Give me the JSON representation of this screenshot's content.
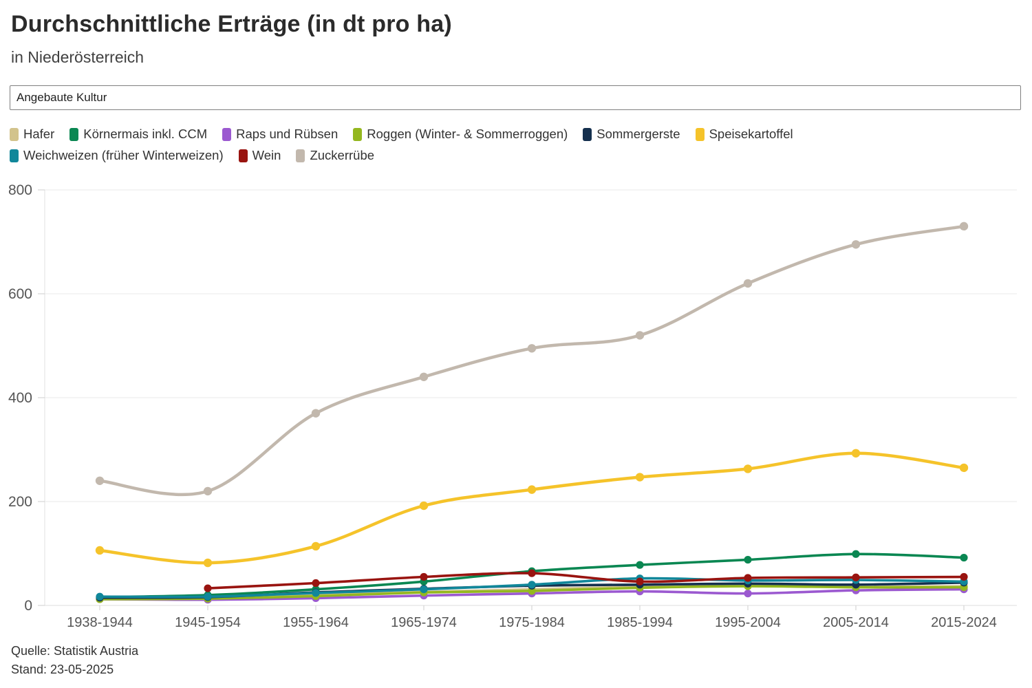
{
  "header": {
    "title": "Durchschnittliche Erträge (in dt pro ha)",
    "subtitle": "in Niederösterreich"
  },
  "filter": {
    "label": "Angebaute Kultur"
  },
  "chart_data": {
    "type": "line",
    "title": "Durchschnittliche Erträge (in dt pro ha)",
    "xlabel": "",
    "ylabel": "",
    "ylim": [
      0,
      800
    ],
    "yticks": [
      0,
      200,
      400,
      600,
      800
    ],
    "grid": true,
    "legend_position": "top",
    "categories": [
      "1938-1944",
      "1945-1954",
      "1955-1964",
      "1965-1974",
      "1975-1984",
      "1985-1994",
      "1995-2004",
      "2005-2014",
      "2015-2024"
    ],
    "series": [
      {
        "name": "Hafer",
        "color": "#d2c38c",
        "values": [
          13,
          14,
          20,
          26,
          31,
          36,
          38,
          36,
          37
        ]
      },
      {
        "name": "Körnermais inkl. CCM",
        "color": "#0a8752",
        "values": [
          16,
          20,
          31,
          46,
          66,
          78,
          88,
          99,
          92
        ]
      },
      {
        "name": "Raps und Rübsen",
        "color": "#9b59d0",
        "values": [
          12,
          11,
          14,
          19,
          23,
          27,
          23,
          29,
          31
        ]
      },
      {
        "name": "Roggen (Winter- & Sommerroggen)",
        "color": "#94b71f",
        "values": [
          12,
          13,
          18,
          25,
          28,
          34,
          37,
          35,
          35
        ]
      },
      {
        "name": "Sommergerste",
        "color": "#15304e",
        "values": [
          15,
          16,
          25,
          32,
          38,
          40,
          42,
          40,
          44
        ]
      },
      {
        "name": "Speisekartoffel",
        "color": "#f5c32a",
        "values": [
          106,
          82,
          114,
          192,
          223,
          247,
          263,
          293,
          265
        ]
      },
      {
        "name": "Weichweizen (früher Winterweizen)",
        "color": "#11879a",
        "values": [
          17,
          17,
          24,
          31,
          40,
          52,
          48,
          49,
          46
        ]
      },
      {
        "name": "Wein",
        "color": "#991410",
        "values": [
          null,
          33,
          43,
          55,
          62,
          46,
          53,
          54,
          55
        ]
      },
      {
        "name": "Zuckerrübe",
        "color": "#c2b8ad",
        "values": [
          240,
          220,
          370,
          440,
          495,
          520,
          620,
          695,
          730
        ]
      }
    ]
  },
  "footer": {
    "source": "Quelle: Statistik Austria",
    "stand": "Stand: 23-05-2025"
  }
}
